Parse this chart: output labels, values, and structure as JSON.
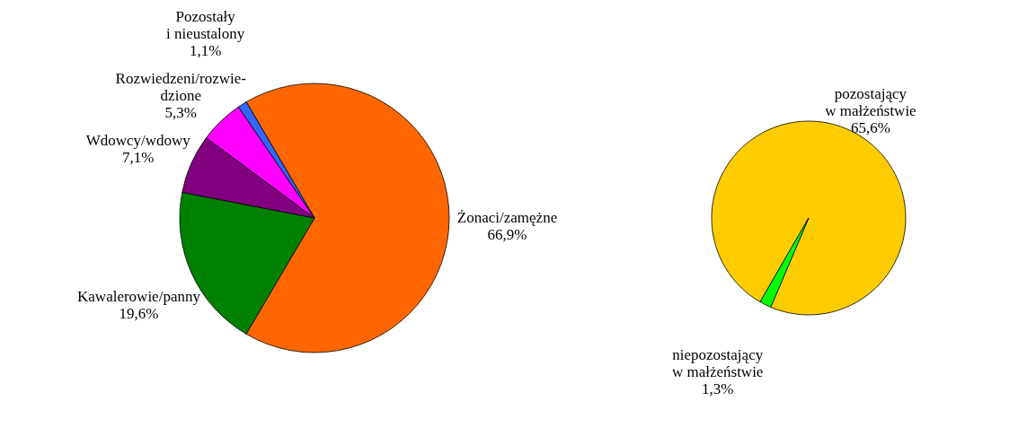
{
  "chart_data": [
    {
      "type": "pie",
      "categories": [
        "Żonaci/zamężne",
        "Kawalerowie/panny",
        "Wdowcy/wdowy",
        "Rozwiedzeni/rozwie-\ndzione",
        "Pozostały\ni nieustalony"
      ],
      "values": [
        66.9,
        19.6,
        7.1,
        5.3,
        1.1
      ],
      "colors": [
        "#ff6600",
        "#008000",
        "#800080",
        "#ff00ff",
        "#3366ff"
      ],
      "value_labels": [
        "66,9%",
        "19,6%",
        "7,1%",
        "5,3%",
        "1,1%"
      ]
    },
    {
      "type": "pie",
      "categories": [
        "pozostający\nw małżeństwie",
        "niepozostający\nw małżeństwie"
      ],
      "values": [
        65.6,
        1.3
      ],
      "colors": [
        "#ffcc00",
        "#00ff00"
      ],
      "value_labels": [
        "65,6%",
        "1,3%"
      ]
    }
  ]
}
